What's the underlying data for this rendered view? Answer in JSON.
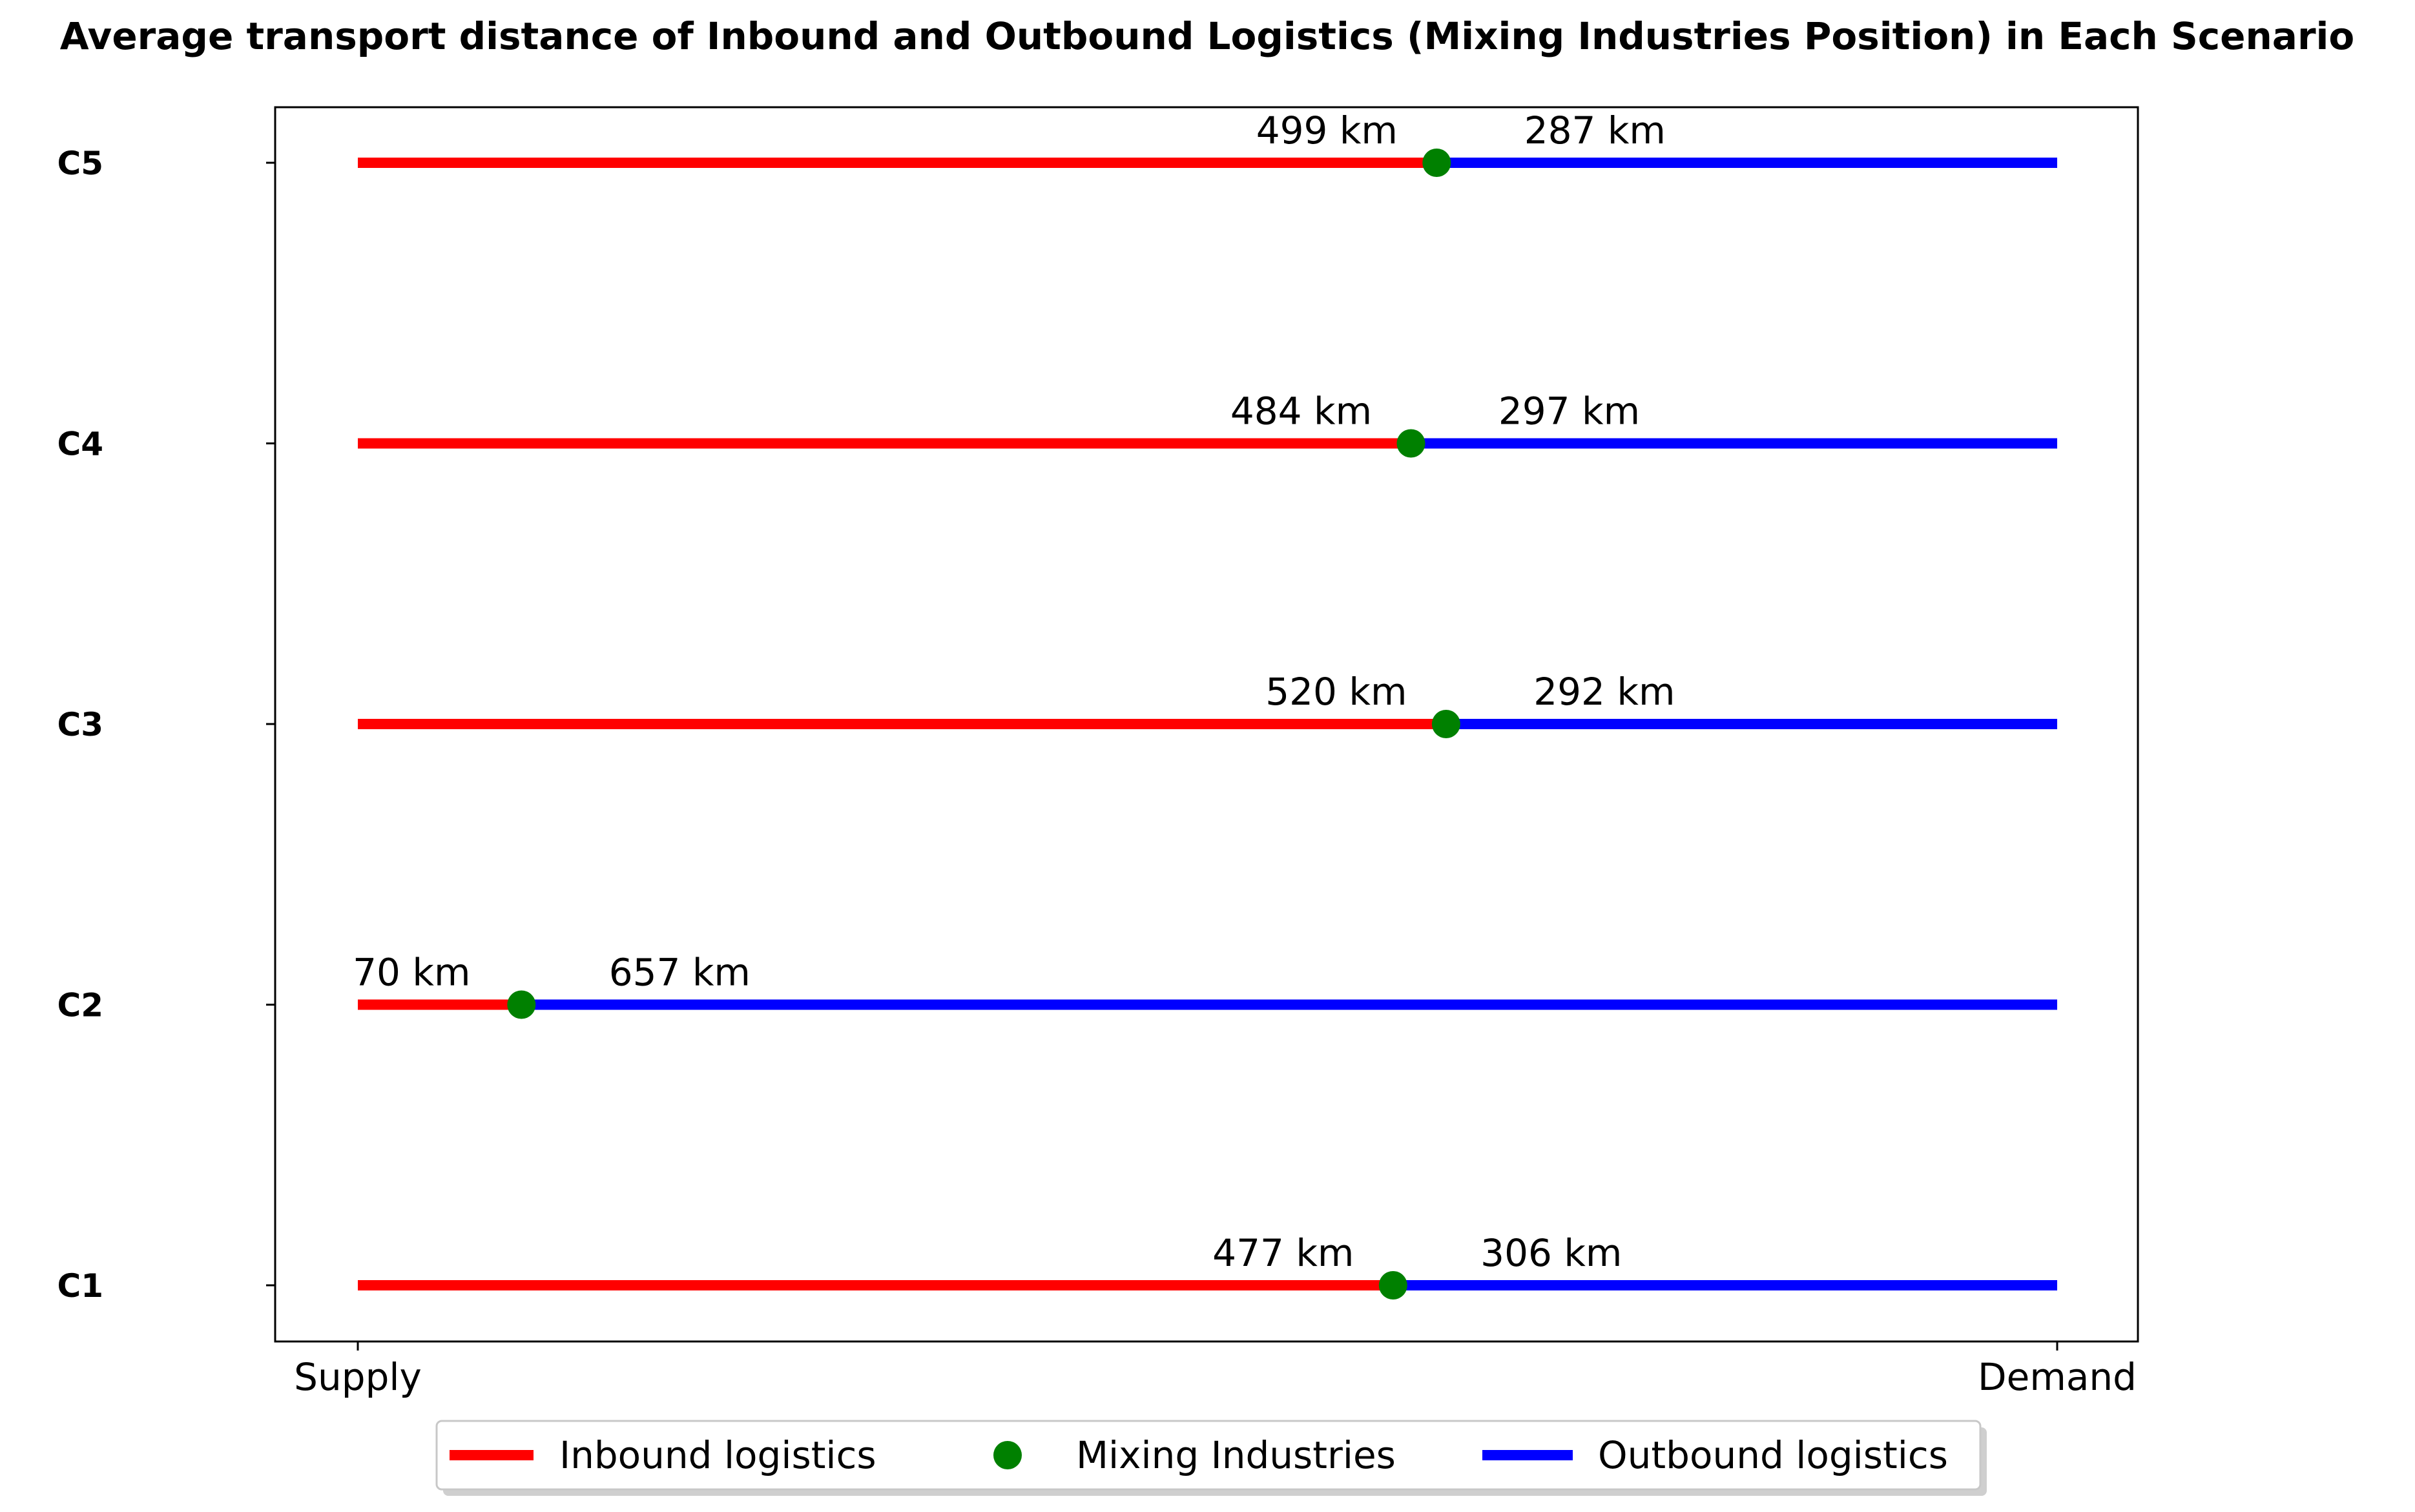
{
  "chart_data": {
    "type": "line",
    "title": "Average transport distance of Inbound and Outbound Logistics (Mixing Industries Position) in Each Scenario",
    "x_tick_labels": [
      "Supply",
      "Demand"
    ],
    "categories": [
      "C1",
      "C2",
      "C3",
      "C4",
      "C5"
    ],
    "series": [
      {
        "name": "Inbound logistics",
        "color": "#ff0000",
        "values": [
          477,
          70,
          520,
          484,
          499
        ]
      },
      {
        "name": "Mixing Industries",
        "color": "#008000",
        "values": [
          477,
          70,
          520,
          484,
          499
        ]
      },
      {
        "name": "Outbound logistics",
        "color": "#0000ff",
        "values": [
          306,
          657,
          292,
          297,
          287
        ]
      }
    ],
    "inbound_labels": [
      "477 km",
      "70 km",
      "520 km",
      "484 km",
      "499 km"
    ],
    "outbound_labels": [
      "306 km",
      "657 km",
      "292 km",
      "297 km",
      "287 km"
    ],
    "legend": [
      {
        "label": "Inbound logistics",
        "marker": "line",
        "color": "#ff0000"
      },
      {
        "label": "Mixing Industries",
        "marker": "dot",
        "color": "#008000"
      },
      {
        "label": "Outbound logistics",
        "marker": "line",
        "color": "#0000ff"
      }
    ],
    "legend_position": "bottom-center",
    "grid": false
  }
}
